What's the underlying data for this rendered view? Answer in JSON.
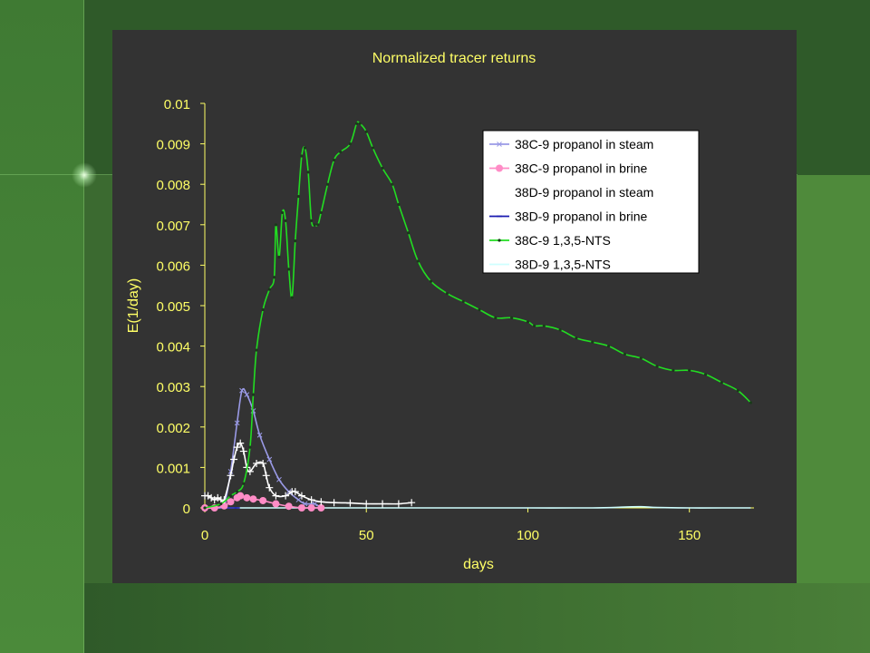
{
  "chart_data": {
    "type": "line",
    "title": "Normalized tracer returns",
    "xlabel": "days",
    "ylabel": "E(1/day)",
    "xlim": [
      0,
      170
    ],
    "ylim": [
      0,
      0.01
    ],
    "x_ticks": [
      "0",
      "50",
      "100",
      "150"
    ],
    "y_ticks": [
      "0",
      "0.001",
      "0.002",
      "0.003",
      "0.004",
      "0.005",
      "0.006",
      "0.007",
      "0.008",
      "0.009",
      "0.01"
    ],
    "legend_position": "top-right",
    "grid": false,
    "series": [
      {
        "name": "38C-9 propanol in steam",
        "color": "#9a9ae6",
        "marker": "x",
        "x": [
          0,
          3,
          6,
          8,
          10,
          11.5,
          13,
          15,
          17,
          20,
          23,
          26,
          29,
          31,
          34,
          36
        ],
        "y": [
          0.0,
          0.0,
          0.0001,
          0.0009,
          0.0021,
          0.0029,
          0.0028,
          0.0024,
          0.0018,
          0.0012,
          0.0007,
          0.0004,
          0.0002,
          0.0001,
          0.0001,
          0.0
        ]
      },
      {
        "name": "38C-9 propanol in brine",
        "color": "#ff8cc6",
        "marker": "circle",
        "x": [
          0,
          3,
          6,
          8,
          10,
          11,
          13,
          15,
          18,
          22,
          26,
          30,
          33,
          36
        ],
        "y": [
          0.0,
          0.0,
          5e-05,
          0.00015,
          0.00025,
          0.0003,
          0.00025,
          0.00022,
          0.00018,
          0.0001,
          4e-05,
          0.0,
          0.0,
          0.0
        ]
      },
      {
        "name": "38D-9 propanol in steam",
        "color": "#ffffff",
        "marker": "plus",
        "x": [
          0,
          1,
          2,
          3,
          4,
          5,
          6,
          8,
          9,
          10,
          11,
          12,
          13,
          14,
          16,
          18,
          19,
          20,
          22,
          25,
          27,
          28,
          30,
          33,
          36,
          40,
          45,
          50,
          55,
          60,
          64
        ],
        "y": [
          0.0003,
          0.0003,
          0.00025,
          0.0002,
          0.00025,
          0.0002,
          0.0002,
          0.0008,
          0.0012,
          0.0015,
          0.0016,
          0.0014,
          0.001,
          0.0009,
          0.0011,
          0.0011,
          0.0008,
          0.0005,
          0.0003,
          0.0003,
          0.0004,
          0.0004,
          0.0003,
          0.0002,
          0.00015,
          0.00013,
          0.00012,
          0.0001,
          0.0001,
          0.0001,
          0.00013
        ]
      },
      {
        "name": "38D-9 propanol in brine",
        "color": "#1a1ab0",
        "marker": "dash",
        "x": [
          0,
          5,
          10
        ],
        "y": [
          0.0,
          0.0,
          0.0
        ]
      },
      {
        "name": "38C-9 1,3,5-NTS",
        "color": "#22dd22",
        "marker": "dot",
        "x": [
          0,
          5,
          8,
          10,
          12,
          14,
          15,
          16,
          18,
          20,
          21.5,
          22,
          23,
          24,
          25,
          26,
          27,
          28,
          29,
          30,
          31,
          32,
          33,
          34,
          35,
          36,
          38,
          40,
          42,
          45,
          47,
          48,
          50,
          52,
          55,
          58,
          60,
          63,
          66,
          70,
          75,
          80,
          85,
          90,
          95,
          100,
          102,
          105,
          110,
          115,
          120,
          125,
          130,
          135,
          140,
          145,
          150,
          155,
          160,
          165,
          169
        ],
        "y": [
          0.0,
          0.0001,
          0.0003,
          0.0004,
          0.0006,
          0.0015,
          0.0028,
          0.0039,
          0.0049,
          0.0054,
          0.0057,
          0.007,
          0.0062,
          0.0073,
          0.0071,
          0.0059,
          0.0052,
          0.0066,
          0.0077,
          0.0087,
          0.0089,
          0.0083,
          0.0071,
          0.007,
          0.007,
          0.0073,
          0.008,
          0.0086,
          0.0088,
          0.009,
          0.0095,
          0.0095,
          0.0093,
          0.0089,
          0.0084,
          0.008,
          0.0075,
          0.0068,
          0.0061,
          0.0056,
          0.0053,
          0.0051,
          0.0049,
          0.0047,
          0.0047,
          0.0046,
          0.0045,
          0.0045,
          0.0044,
          0.0042,
          0.0041,
          0.004,
          0.0038,
          0.0037,
          0.0035,
          0.0034,
          0.0034,
          0.0033,
          0.0031,
          0.0029,
          0.0026
        ]
      },
      {
        "name": "38D-9 1,3,5-NTS",
        "color": "#cfffff",
        "marker": "none",
        "x": [
          0,
          10,
          20,
          40,
          60,
          80,
          100,
          120,
          130,
          135,
          140,
          150,
          160,
          169
        ],
        "y": [
          0.0,
          0.0,
          0.0,
          0.0,
          0.0,
          0.0,
          0.0,
          0.0,
          2e-05,
          3e-05,
          1e-05,
          0.0,
          0.0,
          0.0
        ]
      }
    ]
  }
}
